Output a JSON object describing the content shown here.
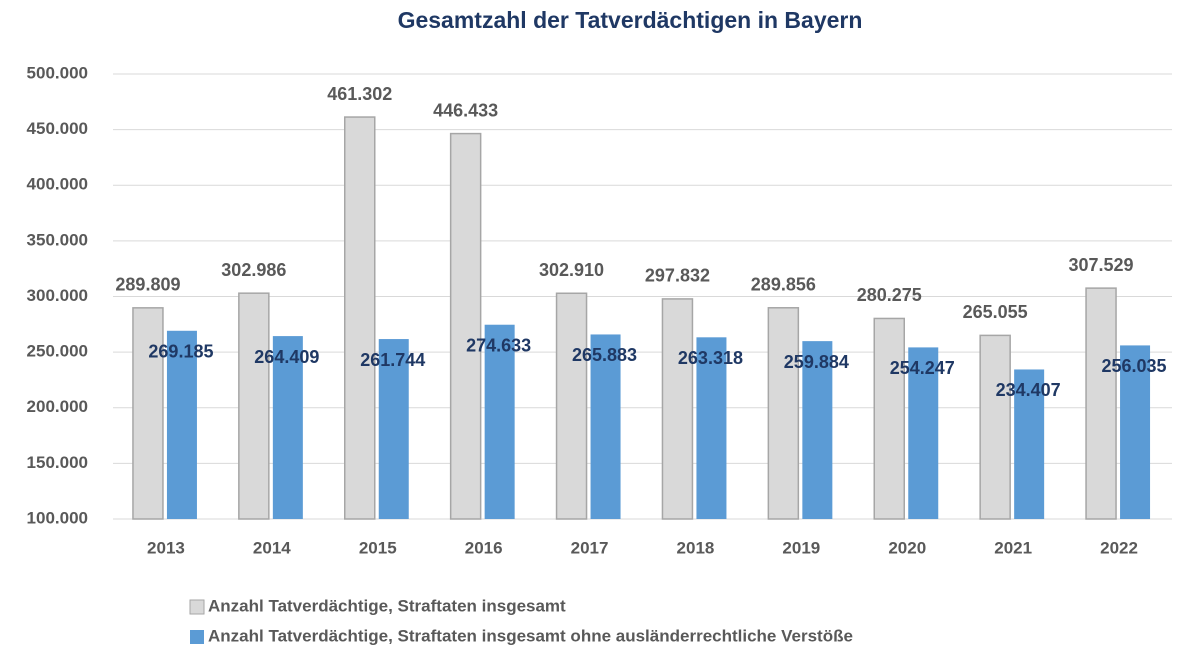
{
  "chart_data": {
    "type": "bar",
    "title": "Gesamtzahl der Tatverdächtigen in Bayern",
    "categories": [
      "2013",
      "2014",
      "2015",
      "2016",
      "2017",
      "2018",
      "2019",
      "2020",
      "2021",
      "2022"
    ],
    "series": [
      {
        "name": "Anzahl Tatverdächtige, Straftaten insgesamt",
        "color": "#d9d9d9",
        "values": [
          289809,
          302986,
          461302,
          446433,
          302910,
          297832,
          289856,
          280275,
          265055,
          307529
        ],
        "value_labels": [
          "289.809",
          "302.986",
          "461.302",
          "446.433",
          "302.910",
          "297.832",
          "289.856",
          "280.275",
          "265.055",
          "307.529"
        ]
      },
      {
        "name": "Anzahl Tatverdächtige, Straftaten insgesamt ohne ausländerrechtliche Verstöße",
        "color": "#5b9bd5",
        "values": [
          269185,
          264409,
          261744,
          274633,
          265883,
          263318,
          259884,
          254247,
          234407,
          256035
        ],
        "value_labels": [
          "269.185",
          "264.409",
          "261.744",
          "274.633",
          "265.883",
          "263.318",
          "259.884",
          "254.247",
          "234.407",
          "256.035"
        ]
      }
    ],
    "ylim": [
      100000,
      500000
    ],
    "yticks": [
      {
        "value": 100000,
        "label": "100.000"
      },
      {
        "value": 150000,
        "label": "150.000"
      },
      {
        "value": 200000,
        "label": "200.000"
      },
      {
        "value": 250000,
        "label": "250.000"
      },
      {
        "value": 300000,
        "label": "300.000"
      },
      {
        "value": 350000,
        "label": "350.000"
      },
      {
        "value": 400000,
        "label": "400.000"
      },
      {
        "value": 450000,
        "label": "450.000"
      },
      {
        "value": 500000,
        "label": "500.000"
      }
    ],
    "grid": true,
    "legend": "bottom"
  }
}
